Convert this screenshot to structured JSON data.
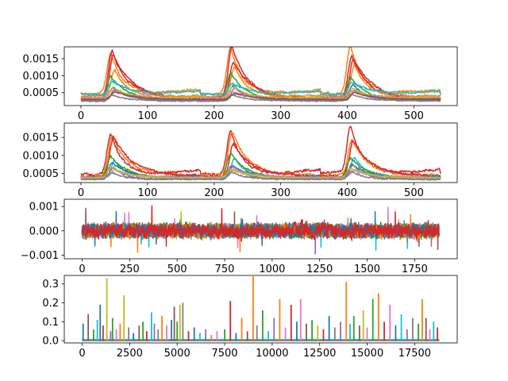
{
  "palette": [
    "#1f77b4",
    "#ff7f0e",
    "#2ca02c",
    "#d62728",
    "#9467bd",
    "#8c564b",
    "#e377c2",
    "#7f7f7f",
    "#bcbd22",
    "#17becf"
  ],
  "chart_data": [
    {
      "type": "line",
      "title": "",
      "xlabel": "",
      "ylabel": "",
      "xlim": [
        -25,
        565
      ],
      "ylim": [
        0.00012,
        0.00185
      ],
      "xticks": [
        0,
        100,
        200,
        300,
        400,
        500
      ],
      "xtick_labels": [
        "0",
        "100",
        "200",
        "300",
        "400",
        "500"
      ],
      "yticks": [
        0.0005,
        0.001,
        0.0015
      ],
      "ytick_labels": [
        "0.0005",
        "0.0010",
        "0.0015"
      ],
      "grid": false,
      "n_points": 541,
      "peak_centers": [
        45,
        225,
        405
      ],
      "series": [
        {
          "color": "#ff7f0e",
          "base": 0.00048,
          "peak": 0.0018
        },
        {
          "color": "#d62728",
          "base": 0.00035,
          "peak": 0.00172
        },
        {
          "color": "#d62728",
          "base": 0.0003,
          "peak": 0.0015
        },
        {
          "color": "#ff7f0e",
          "base": 0.0004,
          "peak": 0.00125
        },
        {
          "color": "#2ca02c",
          "base": 0.00028,
          "peak": 0.001
        },
        {
          "color": "#17becf",
          "base": 0.00045,
          "peak": 0.0008
        },
        {
          "color": "#1f77b4",
          "base": 0.0003,
          "peak": 0.0007
        },
        {
          "color": "#9467bd",
          "base": 0.00025,
          "peak": 0.0006
        },
        {
          "color": "#e377c2",
          "base": 0.00035,
          "peak": 0.00055
        },
        {
          "color": "#7f7f7f",
          "base": 0.00027,
          "peak": 0.00045
        },
        {
          "color": "#bcbd22",
          "base": 0.00032,
          "peak": 0.00065
        },
        {
          "color": "#8c564b",
          "base": 0.0003,
          "peak": 0.0005
        }
      ]
    },
    {
      "type": "line",
      "title": "",
      "xlabel": "",
      "ylabel": "",
      "xlim": [
        -25,
        565
      ],
      "ylim": [
        0.00025,
        0.0019
      ],
      "xticks": [
        0,
        100,
        200,
        300,
        400,
        500
      ],
      "xtick_labels": [
        "0",
        "100",
        "200",
        "300",
        "400",
        "500"
      ],
      "yticks": [
        0.0005,
        0.001,
        0.0015
      ],
      "ytick_labels": [
        "0.0005",
        "0.0010",
        "0.0015"
      ],
      "grid": false,
      "n_points": 541,
      "peak_centers": [
        45,
        225,
        405
      ],
      "series": [
        {
          "color": "#d62728",
          "base": 0.0005,
          "peak": 0.0017
        },
        {
          "color": "#ff7f0e",
          "base": 0.00045,
          "peak": 0.00155
        },
        {
          "color": "#d62728",
          "base": 0.00042,
          "peak": 0.0014
        },
        {
          "color": "#17becf",
          "base": 0.0004,
          "peak": 0.0009
        },
        {
          "color": "#2ca02c",
          "base": 0.00038,
          "peak": 0.001
        },
        {
          "color": "#1f77b4",
          "base": 0.00036,
          "peak": 0.00075
        },
        {
          "color": "#9467bd",
          "base": 0.00035,
          "peak": 0.0007
        },
        {
          "color": "#e377c2",
          "base": 0.0004,
          "peak": 0.0006
        },
        {
          "color": "#bcbd22",
          "base": 0.00037,
          "peak": 0.00065
        },
        {
          "color": "#7f7f7f",
          "base": 0.00034,
          "peak": 0.00055
        }
      ]
    },
    {
      "type": "line",
      "title": "",
      "xlabel": "",
      "ylabel": "",
      "xlim": [
        -94,
        1974
      ],
      "ylim": [
        -0.00115,
        0.0013
      ],
      "xticks": [
        0,
        250,
        500,
        750,
        1000,
        1250,
        1500,
        1750
      ],
      "xtick_labels": [
        "0",
        "250",
        "500",
        "750",
        "1000",
        "1250",
        "1500",
        "1750"
      ],
      "yticks": [
        -0.001,
        0.0,
        0.001
      ],
      "ytick_labels": [
        "−0.001",
        "0.000",
        "0.001"
      ],
      "grid": false,
      "n_points": 1880,
      "noise_amplitude": 0.00025,
      "series": [
        {
          "color": "#17becf"
        },
        {
          "color": "#bcbd22"
        },
        {
          "color": "#7f7f7f"
        },
        {
          "color": "#e377c2"
        },
        {
          "color": "#8c564b"
        },
        {
          "color": "#9467bd"
        },
        {
          "color": "#2ca02c"
        },
        {
          "color": "#ff7f0e"
        },
        {
          "color": "#1f77b4"
        },
        {
          "color": "#d62728"
        }
      ]
    },
    {
      "type": "bar",
      "title": "",
      "xlabel": "",
      "ylabel": "",
      "xlim": [
        -940,
        19740
      ],
      "ylim": [
        -0.012,
        0.345
      ],
      "xticks": [
        0,
        2500,
        5000,
        7500,
        10000,
        12500,
        15000,
        17500
      ],
      "xtick_labels": [
        "0",
        "2500",
        "5000",
        "7500",
        "10000",
        "12500",
        "15000",
        "17500"
      ],
      "yticks": [
        0.0,
        0.1,
        0.2,
        0.3
      ],
      "ytick_labels": [
        "0.0",
        "0.1",
        "0.2",
        "0.3"
      ],
      "grid": false,
      "spikes": [
        {
          "x": 50,
          "y": 0.09,
          "c": 0
        },
        {
          "x": 320,
          "y": 0.14,
          "c": 5
        },
        {
          "x": 600,
          "y": 0.06,
          "c": 2
        },
        {
          "x": 800,
          "y": 0.11,
          "c": 9
        },
        {
          "x": 950,
          "y": 0.19,
          "c": 0
        },
        {
          "x": 1100,
          "y": 0.08,
          "c": 3
        },
        {
          "x": 1300,
          "y": 0.33,
          "c": 8
        },
        {
          "x": 1500,
          "y": 0.05,
          "c": 4
        },
        {
          "x": 1600,
          "y": 0.12,
          "c": 2
        },
        {
          "x": 1800,
          "y": 0.06,
          "c": 6
        },
        {
          "x": 2000,
          "y": 0.09,
          "c": 1
        },
        {
          "x": 2200,
          "y": 0.24,
          "c": 8
        },
        {
          "x": 2450,
          "y": 0.07,
          "c": 7
        },
        {
          "x": 2700,
          "y": 0.04,
          "c": 0
        },
        {
          "x": 3000,
          "y": 0.08,
          "c": 5
        },
        {
          "x": 3200,
          "y": 0.1,
          "c": 2
        },
        {
          "x": 3400,
          "y": 0.05,
          "c": 3
        },
        {
          "x": 3650,
          "y": 0.15,
          "c": 9
        },
        {
          "x": 3800,
          "y": 0.09,
          "c": 4
        },
        {
          "x": 4000,
          "y": 0.06,
          "c": 7
        },
        {
          "x": 4200,
          "y": 0.13,
          "c": 1
        },
        {
          "x": 4450,
          "y": 0.08,
          "c": 6
        },
        {
          "x": 4700,
          "y": 0.11,
          "c": 0
        },
        {
          "x": 4850,
          "y": 0.18,
          "c": 5
        },
        {
          "x": 5000,
          "y": 0.1,
          "c": 2
        },
        {
          "x": 5150,
          "y": 0.19,
          "c": 8
        },
        {
          "x": 5300,
          "y": 0.2,
          "c": 7
        },
        {
          "x": 5600,
          "y": 0.05,
          "c": 3
        },
        {
          "x": 5900,
          "y": 0.07,
          "c": 0
        },
        {
          "x": 6200,
          "y": 0.04,
          "c": 9
        },
        {
          "x": 6500,
          "y": 0.06,
          "c": 4
        },
        {
          "x": 6800,
          "y": 0.03,
          "c": 1
        },
        {
          "x": 7100,
          "y": 0.05,
          "c": 6
        },
        {
          "x": 7500,
          "y": 0.06,
          "c": 2
        },
        {
          "x": 7800,
          "y": 0.21,
          "c": 3
        },
        {
          "x": 8100,
          "y": 0.04,
          "c": 0
        },
        {
          "x": 8400,
          "y": 0.12,
          "c": 1
        },
        {
          "x": 8700,
          "y": 0.05,
          "c": 5
        },
        {
          "x": 9000,
          "y": 0.34,
          "c": 1
        },
        {
          "x": 9200,
          "y": 0.08,
          "c": 7
        },
        {
          "x": 9500,
          "y": 0.16,
          "c": 2
        },
        {
          "x": 9800,
          "y": 0.05,
          "c": 9
        },
        {
          "x": 10100,
          "y": 0.12,
          "c": 4
        },
        {
          "x": 10400,
          "y": 0.22,
          "c": 1
        },
        {
          "x": 10700,
          "y": 0.07,
          "c": 6
        },
        {
          "x": 11000,
          "y": 0.19,
          "c": 3
        },
        {
          "x": 11300,
          "y": 0.1,
          "c": 0
        },
        {
          "x": 11500,
          "y": 0.22,
          "c": 6
        },
        {
          "x": 11800,
          "y": 0.09,
          "c": 5
        },
        {
          "x": 12100,
          "y": 0.11,
          "c": 2
        },
        {
          "x": 12400,
          "y": 0.08,
          "c": 8
        },
        {
          "x": 12700,
          "y": 0.06,
          "c": 3
        },
        {
          "x": 13000,
          "y": 0.13,
          "c": 0
        },
        {
          "x": 13300,
          "y": 0.07,
          "c": 7
        },
        {
          "x": 13600,
          "y": 0.1,
          "c": 4
        },
        {
          "x": 13900,
          "y": 0.31,
          "c": 1
        },
        {
          "x": 14100,
          "y": 0.09,
          "c": 9
        },
        {
          "x": 14300,
          "y": 0.13,
          "c": 2
        },
        {
          "x": 14600,
          "y": 0.08,
          "c": 5
        },
        {
          "x": 14800,
          "y": 0.16,
          "c": 8
        },
        {
          "x": 15000,
          "y": 0.07,
          "c": 6
        },
        {
          "x": 15300,
          "y": 0.22,
          "c": 2
        },
        {
          "x": 15600,
          "y": 0.25,
          "c": 1
        },
        {
          "x": 15900,
          "y": 0.1,
          "c": 3
        },
        {
          "x": 16200,
          "y": 0.19,
          "c": 6
        },
        {
          "x": 16500,
          "y": 0.08,
          "c": 0
        },
        {
          "x": 16800,
          "y": 0.14,
          "c": 9
        },
        {
          "x": 17100,
          "y": 0.06,
          "c": 4
        },
        {
          "x": 17400,
          "y": 0.12,
          "c": 7
        },
        {
          "x": 17700,
          "y": 0.09,
          "c": 2
        },
        {
          "x": 17900,
          "y": 0.22,
          "c": 1
        },
        {
          "x": 18100,
          "y": 0.12,
          "c": 5
        },
        {
          "x": 18300,
          "y": 0.06,
          "c": 6
        },
        {
          "x": 18500,
          "y": 0.1,
          "c": 9
        },
        {
          "x": 18700,
          "y": 0.07,
          "c": 3
        }
      ]
    }
  ]
}
